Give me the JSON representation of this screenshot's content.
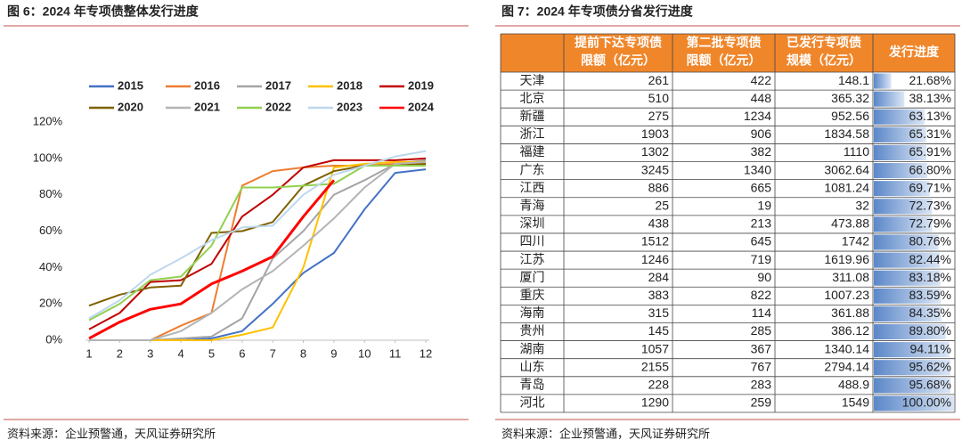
{
  "chart_data": {
    "type": "line",
    "title": "图 6：2024 年专项债整体发行进度",
    "source": "资料来源：企业预警通，天风证券研究所",
    "x": [
      1,
      2,
      3,
      4,
      5,
      6,
      7,
      8,
      9,
      10,
      11,
      12
    ],
    "xlim": [
      1,
      12
    ],
    "xticks": [
      1,
      2,
      3,
      4,
      5,
      6,
      7,
      8,
      9,
      10,
      11,
      12
    ],
    "ylim": [
      0,
      120
    ],
    "yticks": [
      {
        "value": 0,
        "label": "0%"
      },
      {
        "value": 20,
        "label": "20%"
      },
      {
        "value": 40,
        "label": "40%"
      },
      {
        "value": 60,
        "label": "60%"
      },
      {
        "value": 80,
        "label": "80%"
      },
      {
        "value": 100,
        "label": "100%"
      },
      {
        "value": 120,
        "label": "120%"
      }
    ],
    "grid": false,
    "legend": "top",
    "series": [
      {
        "name": "2015",
        "color": "#4472c4",
        "values": [
          0,
          0,
          0,
          0,
          1,
          5,
          20,
          37,
          48,
          72,
          92,
          94
        ]
      },
      {
        "name": "2016",
        "color": "#ed7d31",
        "values": [
          0,
          0,
          0,
          8,
          15,
          85,
          93,
          95,
          96,
          96,
          97,
          97
        ]
      },
      {
        "name": "2017",
        "color": "#a5a5a5",
        "values": [
          0,
          0,
          0,
          1,
          2,
          12,
          45,
          60,
          80,
          88,
          97,
          99
        ]
      },
      {
        "name": "2018",
        "color": "#ffc000",
        "values": [
          0,
          0,
          0,
          0,
          0,
          3,
          7,
          40,
          95,
          97,
          98,
          98
        ]
      },
      {
        "name": "2019",
        "color": "#c00000",
        "values": [
          6,
          15,
          32,
          33,
          42,
          68,
          80,
          95,
          99,
          99,
          99,
          100
        ]
      },
      {
        "name": "2020",
        "color": "#7f6000",
        "values": [
          19,
          25,
          29,
          30,
          59,
          60,
          65,
          85,
          93,
          96,
          96,
          97
        ]
      },
      {
        "name": "2021",
        "color": "#b4b4b4",
        "values": [
          0,
          0,
          0,
          5,
          15,
          28,
          38,
          52,
          67,
          84,
          97,
          98
        ]
      },
      {
        "name": "2022",
        "color": "#92d050",
        "values": [
          11,
          20,
          33,
          35,
          52,
          84,
          84,
          85,
          86,
          96,
          96,
          96
        ]
      },
      {
        "name": "2023",
        "color": "#bdd7ee",
        "values": [
          12,
          22,
          36,
          45,
          55,
          62,
          63,
          80,
          91,
          96,
          101,
          104
        ]
      },
      {
        "name": "2024",
        "color": "#ff0000",
        "values": [
          1,
          10,
          17,
          20,
          31,
          38,
          46,
          68,
          88,
          null,
          null,
          null
        ]
      }
    ]
  },
  "table": {
    "title": "图 7：2024 年专项债分省发行进度",
    "source": "资料来源：企业预警通，天风证券研究所",
    "header": [
      [
        "提前下达专项债",
        "限额（亿元）"
      ],
      [
        "第二批专项债",
        "限额（亿元）"
      ],
      [
        "已发行专项债",
        "规模（亿元）"
      ],
      [
        "发行进度"
      ]
    ],
    "rows": [
      [
        "天津",
        "261",
        "422",
        "148.1",
        "21.68%"
      ],
      [
        "北京",
        "510",
        "448",
        "365.32",
        "38.13%"
      ],
      [
        "新疆",
        "275",
        "1234",
        "952.56",
        "63.13%"
      ],
      [
        "浙江",
        "1903",
        "906",
        "1834.58",
        "65.31%"
      ],
      [
        "福建",
        "1302",
        "382",
        "1110",
        "65.91%"
      ],
      [
        "广东",
        "3245",
        "1340",
        "3062.64",
        "66.80%"
      ],
      [
        "江西",
        "886",
        "665",
        "1081.24",
        "69.71%"
      ],
      [
        "青海",
        "25",
        "19",
        "32",
        "72.73%"
      ],
      [
        "深圳",
        "438",
        "213",
        "473.88",
        "72.79%"
      ],
      [
        "四川",
        "1512",
        "645",
        "1742",
        "80.76%"
      ],
      [
        "江苏",
        "1246",
        "719",
        "1619.96",
        "82.44%"
      ],
      [
        "厦门",
        "284",
        "90",
        "311.08",
        "83.18%"
      ],
      [
        "重庆",
        "383",
        "822",
        "1007.23",
        "83.59%"
      ],
      [
        "海南",
        "315",
        "114",
        "361.88",
        "84.35%"
      ],
      [
        "贵州",
        "145",
        "285",
        "386.12",
        "89.80%"
      ],
      [
        "湖南",
        "1057",
        "367",
        "1340.14",
        "94.11%"
      ],
      [
        "山东",
        "2155",
        "767",
        "2794.14",
        "95.62%"
      ],
      [
        "青岛",
        "228",
        "283",
        "488.9",
        "95.68%"
      ],
      [
        "河北",
        "1290",
        "259",
        "1549",
        "100.00%"
      ]
    ]
  }
}
